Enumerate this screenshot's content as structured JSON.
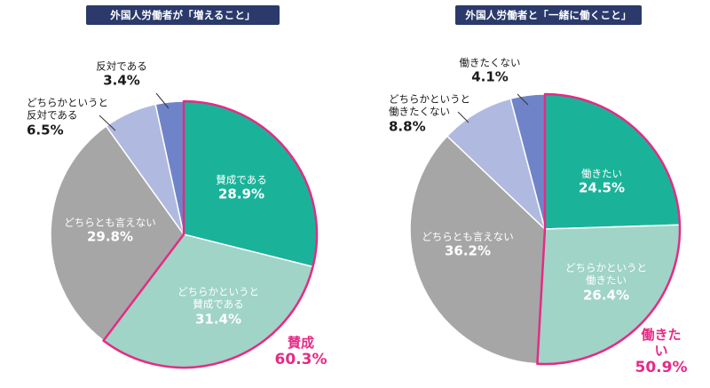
{
  "chart_data": [
    {
      "type": "pie",
      "title": "外国人労働者が「増えること」",
      "slices": [
        {
          "label": "賛成である",
          "value": 28.9,
          "value_text": "28.9%",
          "color": "#1ab39a"
        },
        {
          "label": "どちらかというと賛成である",
          "label_lines": [
            "どちらかというと",
            "賛成である"
          ],
          "value": 31.4,
          "value_text": "31.4%",
          "color": "#9fd4c6"
        },
        {
          "label": "どちらとも言えない",
          "value": 29.8,
          "value_text": "29.8%",
          "color": "#a6a6a6"
        },
        {
          "label": "どちらかというと反対である",
          "label_lines": [
            "どちらかというと",
            "反対である"
          ],
          "value": 6.5,
          "value_text": "6.5%",
          "color": "#b0b9df"
        },
        {
          "label": "反対である",
          "value": 3.4,
          "value_text": "3.4%",
          "color": "#6f84c8"
        }
      ],
      "highlight": {
        "label": "賛成",
        "value_text": "60.3%",
        "color": "#e52b86",
        "slices": [
          0,
          1
        ]
      }
    },
    {
      "type": "pie",
      "title": "外国人労働者と「一緒に働くこと」",
      "slices": [
        {
          "label": "働きたい",
          "value": 24.5,
          "value_text": "24.5%",
          "color": "#1ab39a"
        },
        {
          "label": "どちらかというと働きたい",
          "label_lines": [
            "どちらかというと",
            "働きたい"
          ],
          "value": 26.4,
          "value_text": "26.4%",
          "color": "#9fd4c6"
        },
        {
          "label": "どちらとも言えない",
          "value": 36.2,
          "value_text": "36.2%",
          "color": "#a6a6a6"
        },
        {
          "label": "どちらかというと働きたくない",
          "label_lines": [
            "どちらかというと",
            "働きたくない"
          ],
          "value": 8.8,
          "value_text": "8.8%",
          "color": "#b0b9df"
        },
        {
          "label": "働きたくない",
          "value": 4.1,
          "value_text": "4.1%",
          "color": "#6f84c8"
        }
      ],
      "highlight": {
        "label": "働きたい",
        "value_text": "50.9%",
        "color": "#e52b86",
        "slices": [
          0,
          1
        ]
      }
    }
  ]
}
